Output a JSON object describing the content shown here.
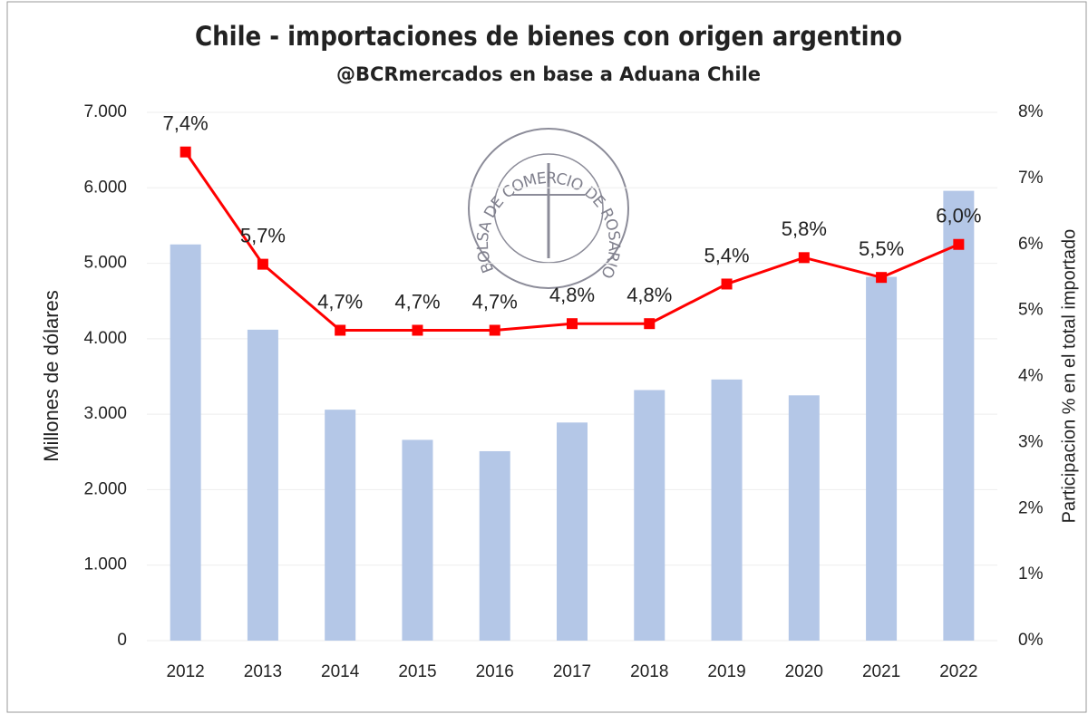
{
  "chart_data": {
    "type": "bar",
    "title": "Chile - importaciones de bienes con origen argentino",
    "subtitle": "@BCRmercados en base a Aduana Chile",
    "ylabel": "Millones de dólares",
    "y2label": "Participacion % en el total importado",
    "watermark": "BOLSA DE COMERCIO DE ROSARIO",
    "categories": [
      "2012",
      "2013",
      "2014",
      "2015",
      "2016",
      "2017",
      "2018",
      "2019",
      "2020",
      "2021",
      "2022"
    ],
    "series": [
      {
        "name": "Importaciones",
        "type": "bar",
        "color": "#b4c7e7",
        "values": [
          5250,
          4120,
          3060,
          2660,
          2510,
          2890,
          3320,
          3460,
          3250,
          4820,
          5960
        ]
      },
      {
        "name": "Participación",
        "type": "line",
        "axis": "y2",
        "color": "#ff0000",
        "values": [
          7.4,
          5.7,
          4.7,
          4.7,
          4.7,
          4.8,
          4.8,
          5.4,
          5.8,
          5.5,
          6.0
        ],
        "value_labels": [
          "7,4%",
          "5,7%",
          "4,7%",
          "4,7%",
          "4,7%",
          "4,8%",
          "4,8%",
          "5,4%",
          "5,8%",
          "5,5%",
          "6,0%"
        ]
      }
    ],
    "ylim": [
      0,
      7000
    ],
    "yticks": [
      0,
      {
        "value": 1000,
        "label": "1.000"
      },
      {
        "value": 2000,
        "label": "2.000"
      },
      {
        "value": 3000,
        "label": "3.000"
      },
      {
        "value": 4000,
        "label": "4.000"
      },
      {
        "value": 5000,
        "label": "5.000"
      },
      {
        "value": 6000,
        "label": "6.000"
      },
      {
        "value": 7000,
        "label": "7.000"
      }
    ],
    "y2lim": [
      0,
      8
    ],
    "y2ticks": [
      {
        "value": 0,
        "label": "0%"
      },
      {
        "value": 1,
        "label": "1%"
      },
      {
        "value": 2,
        "label": "2%"
      },
      {
        "value": 3,
        "label": "3%"
      },
      {
        "value": 4,
        "label": "4%"
      },
      {
        "value": 5,
        "label": "5%"
      },
      {
        "value": 6,
        "label": "6%"
      },
      {
        "value": 7,
        "label": "7%"
      },
      {
        "value": 8,
        "label": "8%"
      }
    ],
    "grid": true
  }
}
